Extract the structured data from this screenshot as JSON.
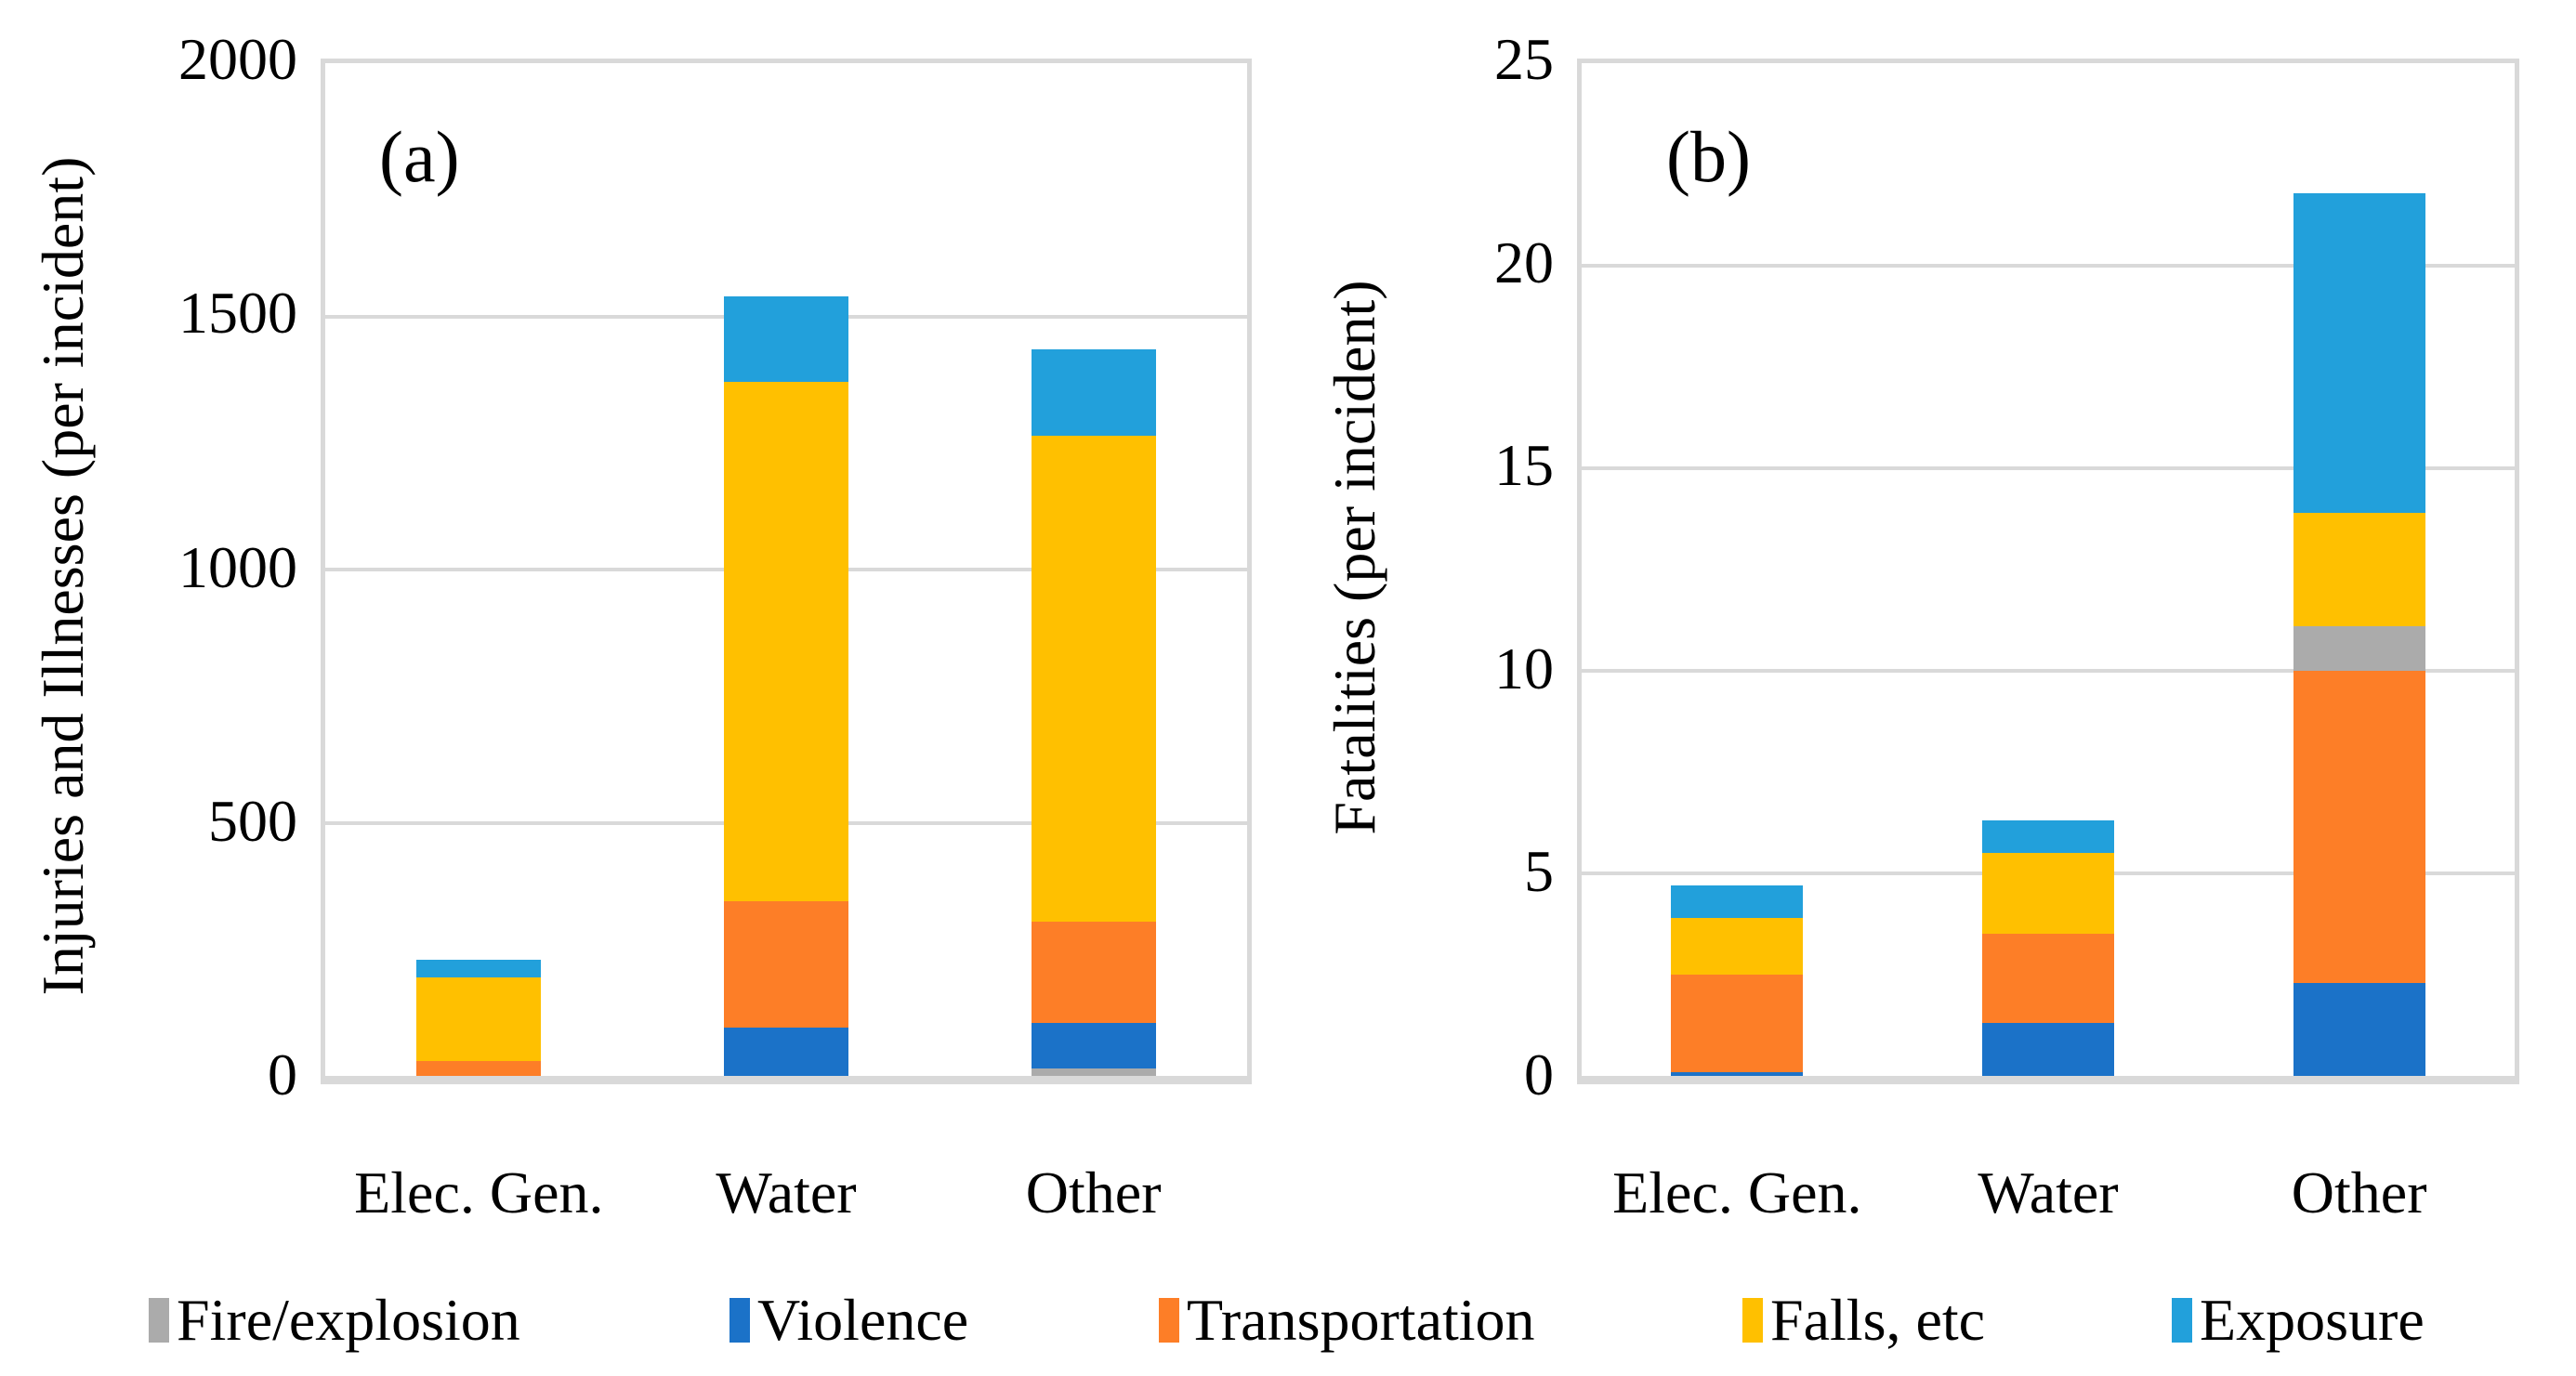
{
  "colors": {
    "fire": "#ABABAB",
    "violence": "#1B72C8",
    "transportation": "#FD7E27",
    "falls": "#FFC000",
    "exposure": "#22A0DB",
    "gridline": "#D9D9D9",
    "text": "#000000"
  },
  "legend": {
    "items": [
      {
        "key": "fire",
        "label": "Fire/explosion"
      },
      {
        "key": "violence",
        "label": "Violence"
      },
      {
        "key": "transportation",
        "label": "Transportation"
      },
      {
        "key": "falls",
        "label": "Falls, etc"
      },
      {
        "key": "exposure",
        "label": "Exposure"
      }
    ]
  },
  "chart_data": [
    {
      "type": "bar",
      "stacked": true,
      "panel_label": "(a)",
      "title": "",
      "xlabel": "",
      "ylabel": "Injuries and Illnesses (per incident)",
      "ylim": [
        0,
        2000
      ],
      "yticks": [
        0,
        500,
        1000,
        1500,
        2000
      ],
      "grid": true,
      "legend_position": "bottom",
      "categories": [
        "Elec. Gen.",
        "Water",
        "Other"
      ],
      "stack_order_bottom_to_top": [
        "Fire/explosion",
        "Violence",
        "Transportation",
        "Falls, etc",
        "Exposure"
      ],
      "series": [
        {
          "key": "fire",
          "name": "Fire/explosion",
          "values": [
            0,
            0,
            15
          ]
        },
        {
          "key": "violence",
          "name": "Violence",
          "values": [
            0,
            95,
            90
          ]
        },
        {
          "key": "transportation",
          "name": "Transportation",
          "values": [
            30,
            250,
            200
          ]
        },
        {
          "key": "falls",
          "name": "Falls, etc",
          "values": [
            165,
            1025,
            960
          ]
        },
        {
          "key": "exposure",
          "name": "Exposure",
          "values": [
            35,
            170,
            170
          ]
        }
      ],
      "totals": [
        230,
        1540,
        1435
      ]
    },
    {
      "type": "bar",
      "stacked": true,
      "panel_label": "(b)",
      "title": "",
      "xlabel": "",
      "ylabel": "Fatalities (per incident)",
      "ylim": [
        0,
        25
      ],
      "yticks": [
        0,
        5,
        10,
        15,
        20,
        25
      ],
      "grid": true,
      "legend_position": "bottom",
      "categories": [
        "Elec. Gen.",
        "Water",
        "Other"
      ],
      "stack_order_bottom_to_top": [
        "Violence",
        "Transportation",
        "Fire/explosion",
        "Falls, etc",
        "Exposure"
      ],
      "series": [
        {
          "key": "violence",
          "name": "Violence",
          "values": [
            0.1,
            1.3,
            2.3
          ]
        },
        {
          "key": "transportation",
          "name": "Transportation",
          "values": [
            2.4,
            2.2,
            7.7
          ]
        },
        {
          "key": "fire",
          "name": "Fire/explosion",
          "values": [
            0,
            0,
            1.1
          ]
        },
        {
          "key": "falls",
          "name": "Falls, etc",
          "values": [
            1.4,
            2.0,
            2.8
          ]
        },
        {
          "key": "exposure",
          "name": "Exposure",
          "values": [
            0.8,
            0.8,
            7.9
          ]
        }
      ],
      "totals": [
        4.7,
        6.3,
        21.8
      ]
    }
  ]
}
